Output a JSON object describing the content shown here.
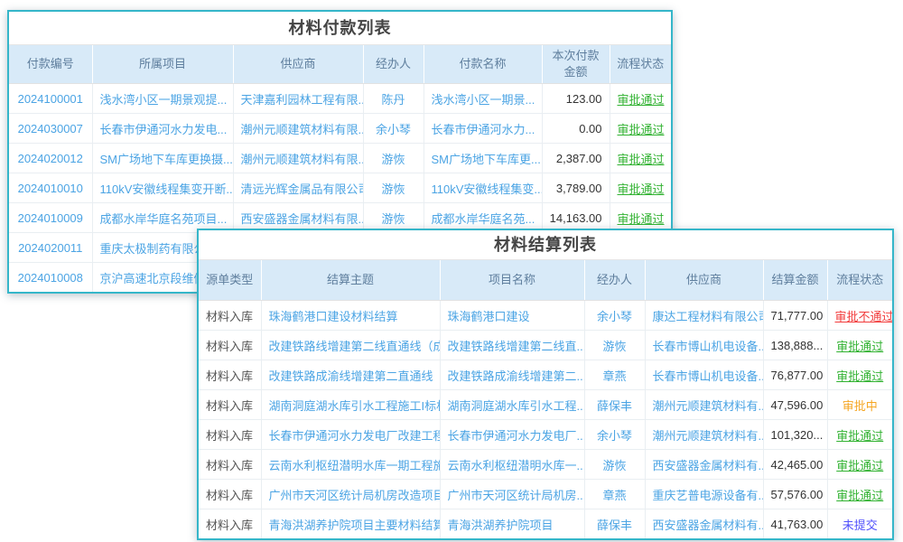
{
  "colors": {
    "card_border": "#35b6c9",
    "header_bg": "#d8eaf8",
    "header_text": "#5e7e9d",
    "link_blue": "#4ba4e4",
    "title_text": "#444444",
    "approved": "#31b231",
    "rejected": "#f23c3c",
    "pending": "#f5a623",
    "not_submitted": "#5151fb"
  },
  "payment_table": {
    "title": "材料付款列表",
    "columns": [
      "付款编号",
      "所属项目",
      "供应商",
      "经办人",
      "付款名称",
      "本次付款\n金额",
      "流程状态"
    ],
    "rows": [
      {
        "id": "2024100001",
        "project": "浅水湾小区一期景观提...",
        "supplier": "天津嘉利园林工程有限...",
        "handler": "陈丹",
        "name": "浅水湾小区一期景...",
        "amount": "123.00",
        "status": "审批通过",
        "status_type": "approved"
      },
      {
        "id": "2024030007",
        "project": "长春市伊通河水力发电...",
        "supplier": "潮州元顺建筑材料有限...",
        "handler": "余小琴",
        "name": "长春市伊通河水力...",
        "amount": "0.00",
        "status": "审批通过",
        "status_type": "approved"
      },
      {
        "id": "2024020012",
        "project": "SM广场地下车库更换摄...",
        "supplier": "潮州元顺建筑材料有限...",
        "handler": "游恢",
        "name": "SM广场地下车库更...",
        "amount": "2,387.00",
        "status": "审批通过",
        "status_type": "approved"
      },
      {
        "id": "2024010010",
        "project": "110kV安徽线程集变开断...",
        "supplier": "清远光辉金属品有限公司",
        "handler": "游恢",
        "name": "110kV安徽线程集变...",
        "amount": "3,789.00",
        "status": "审批通过",
        "status_type": "approved"
      },
      {
        "id": "2024010009",
        "project": "成都水岸华庭名苑项目...",
        "supplier": "西安盛器金属材料有限...",
        "handler": "游恢",
        "name": "成都水岸华庭名苑...",
        "amount": "14,163.00",
        "status": "审批通过",
        "status_type": "approved"
      },
      {
        "id": "2024020011",
        "project": "重庆太极制药有限公司",
        "supplier": "",
        "handler": "",
        "name": "",
        "amount": "",
        "status": "",
        "status_type": null
      },
      {
        "id": "2024010008",
        "project": "京沪高速北京段维修",
        "supplier": "",
        "handler": "",
        "name": "",
        "amount": "",
        "status": "",
        "status_type": null
      }
    ]
  },
  "settlement_table": {
    "title": "材料结算列表",
    "columns": [
      "源单类型",
      "结算主题",
      "项目名称",
      "经办人",
      "供应商",
      "结算金额",
      "流程状态"
    ],
    "rows": [
      {
        "type": "材料入库",
        "subject": "珠海鹤港口建设材料结算",
        "project": "珠海鹤港口建设",
        "handler": "余小琴",
        "supplier": "康达工程材料有限公司",
        "amount": "71,777.00",
        "status": "审批不通过",
        "status_type": "rejected"
      },
      {
        "type": "材料入库",
        "subject": "改建铁路线增建第二线直通线（成...",
        "project": "改建铁路线增建第二线直...",
        "handler": "游恢",
        "supplier": "长春市博山机电设备...",
        "amount": "138,888...",
        "status": "审批通过",
        "status_type": "approved"
      },
      {
        "type": "材料入库",
        "subject": "改建铁路成渝线增建第二直通线（...",
        "project": "改建铁路成渝线增建第二...",
        "handler": "章燕",
        "supplier": "长春市博山机电设备...",
        "amount": "76,877.00",
        "status": "审批通过",
        "status_type": "approved"
      },
      {
        "type": "材料入库",
        "subject": "湖南洞庭湖水库引水工程施工I标材...",
        "project": "湖南洞庭湖水库引水工程...",
        "handler": "薛保丰",
        "supplier": "潮州元顺建筑材料有...",
        "amount": "47,596.00",
        "status": "审批中",
        "status_type": "pending"
      },
      {
        "type": "材料入库",
        "subject": "长春市伊通河水力发电厂改建工程...",
        "project": "长春市伊通河水力发电厂...",
        "handler": "余小琴",
        "supplier": "潮州元顺建筑材料有...",
        "amount": "101,320...",
        "status": "审批通过",
        "status_type": "approved"
      },
      {
        "type": "材料入库",
        "subject": "云南水利枢纽潜明水库一期工程施...",
        "project": "云南水利枢纽潜明水库一...",
        "handler": "游恢",
        "supplier": "西安盛器金属材料有...",
        "amount": "42,465.00",
        "status": "审批通过",
        "status_type": "approved"
      },
      {
        "type": "材料入库",
        "subject": "广州市天河区统计局机房改造项目...",
        "project": "广州市天河区统计局机房...",
        "handler": "章燕",
        "supplier": "重庆艺普电源设备有...",
        "amount": "57,576.00",
        "status": "审批通过",
        "status_type": "approved"
      },
      {
        "type": "材料入库",
        "subject": "青海洪湖养护院项目主要材料结算",
        "project": "青海洪湖养护院项目",
        "handler": "薛保丰",
        "supplier": "西安盛器金属材料有...",
        "amount": "41,763.00",
        "status": "未提交",
        "status_type": "not_submitted"
      }
    ]
  }
}
